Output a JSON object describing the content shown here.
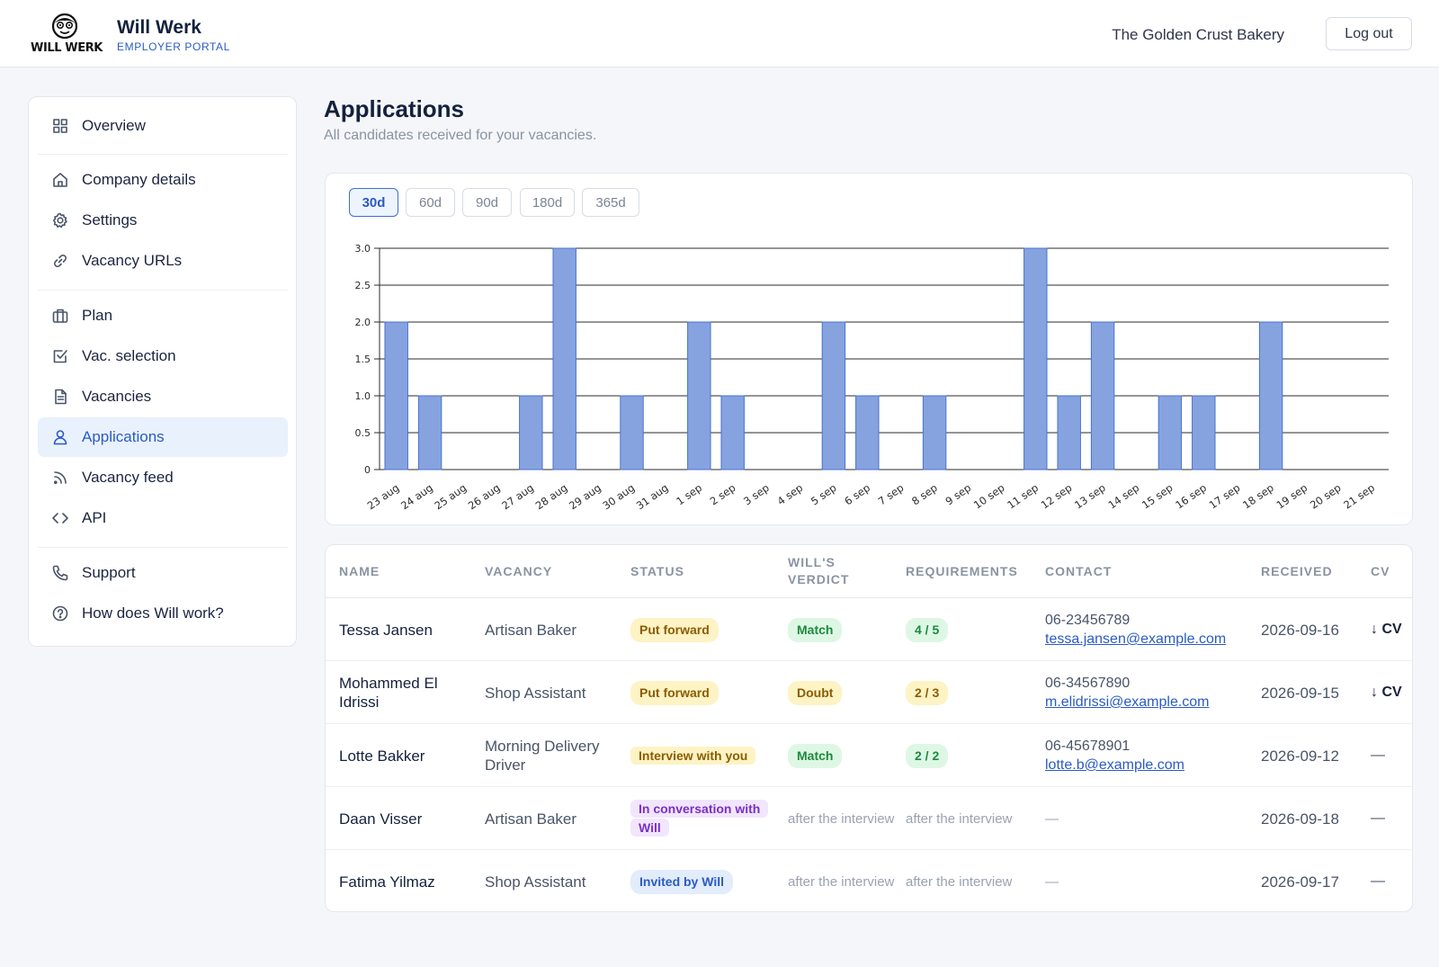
{
  "header": {
    "logo_text": "WILL WERK",
    "brand_name": "Will Werk",
    "brand_sub": "EMPLOYER PORTAL",
    "company": "The Golden Crust Bakery",
    "logout_label": "Log out"
  },
  "sidebar": {
    "items": [
      {
        "label": "Overview",
        "icon": "grid-icon"
      },
      {
        "label": "Company details",
        "icon": "home-icon"
      },
      {
        "label": "Settings",
        "icon": "gear-icon"
      },
      {
        "label": "Vacancy URLs",
        "icon": "link-icon"
      },
      {
        "label": "Plan",
        "icon": "briefcase-icon"
      },
      {
        "label": "Vac. selection",
        "icon": "checkbox-icon"
      },
      {
        "label": "Vacancies",
        "icon": "document-icon"
      },
      {
        "label": "Applications",
        "icon": "user-icon",
        "active": true
      },
      {
        "label": "Vacancy feed",
        "icon": "rss-icon"
      },
      {
        "label": "API",
        "icon": "code-icon"
      },
      {
        "label": "Support",
        "icon": "phone-icon"
      },
      {
        "label": "How does Will work?",
        "icon": "help-icon"
      }
    ]
  },
  "main": {
    "title": "Applications",
    "subtitle": "All candidates received for your vacancies."
  },
  "ranges": [
    "30d",
    "60d",
    "90d",
    "180d",
    "365d"
  ],
  "active_range": "30d",
  "colors": {
    "accent": "#2a5bc4",
    "bar_fill": "#86a3e0",
    "bar_stroke": "#4a72cf"
  },
  "chart_data": {
    "type": "bar",
    "categories": [
      "23 aug",
      "24 aug",
      "25 aug",
      "26 aug",
      "27 aug",
      "28 aug",
      "29 aug",
      "30 aug",
      "31 aug",
      "1 sep",
      "2 sep",
      "3 sep",
      "4 sep",
      "5 sep",
      "6 sep",
      "7 sep",
      "8 sep",
      "9 sep",
      "10 sep",
      "11 sep",
      "12 sep",
      "13 sep",
      "14 sep",
      "15 sep",
      "16 sep",
      "17 sep",
      "18 sep",
      "19 sep",
      "20 sep",
      "21 sep"
    ],
    "values": [
      2,
      1,
      0,
      0,
      1,
      3,
      0,
      1,
      0,
      2,
      1,
      0,
      0,
      2,
      1,
      0,
      1,
      0,
      0,
      3,
      1,
      2,
      0,
      1,
      1,
      0,
      2,
      0,
      0,
      0
    ],
    "ylim": [
      0,
      3
    ],
    "yticks": [
      "0",
      "0.5",
      "1.0",
      "1.5",
      "2.0",
      "2.5",
      "3.0"
    ],
    "grid": true
  },
  "table": {
    "headers": {
      "name": "NAME",
      "vacancy": "VACANCY",
      "status": "STATUS",
      "verdict": "WILL'S VERDICT",
      "requirements": "REQUIREMENTS",
      "contact": "CONTACT",
      "received": "RECEIVED",
      "cv": "CV"
    },
    "rows": [
      {
        "name": "Tessa Jansen",
        "vacancy": "Artisan Baker",
        "status": "Put forward",
        "verdict": "Match",
        "requirements": "4 / 5",
        "phone": "06-23456789",
        "email": "tessa.jansen@example.com",
        "received": "2026-09-16",
        "cv": "↓ CV"
      },
      {
        "name": "Mohammed El Idrissi",
        "vacancy": "Shop Assistant",
        "status": "Put forward",
        "verdict": "Doubt",
        "requirements": "2 / 3",
        "phone": "06-34567890",
        "email": "m.elidrissi@example.com",
        "received": "2026-09-15",
        "cv": "↓ CV"
      },
      {
        "name": "Lotte Bakker",
        "vacancy": "Morning Delivery Driver",
        "status": "Interview with you",
        "verdict": "Match",
        "requirements": "2 / 2",
        "phone": "06-45678901",
        "email": "lotte.b@example.com",
        "received": "2026-09-12",
        "cv": "—"
      },
      {
        "name": "Daan Visser",
        "vacancy": "Artisan Baker",
        "status": "In conversation with Will",
        "verdict": "after the interview",
        "requirements": "after the interview",
        "phone": "—",
        "email": "",
        "received": "2026-09-18",
        "cv": "—"
      },
      {
        "name": "Fatima Yilmaz",
        "vacancy": "Shop Assistant",
        "status": "Invited by Will",
        "verdict": "after the interview",
        "requirements": "after the interview",
        "phone": "—",
        "email": "",
        "received": "2026-09-17",
        "cv": "—"
      }
    ]
  }
}
